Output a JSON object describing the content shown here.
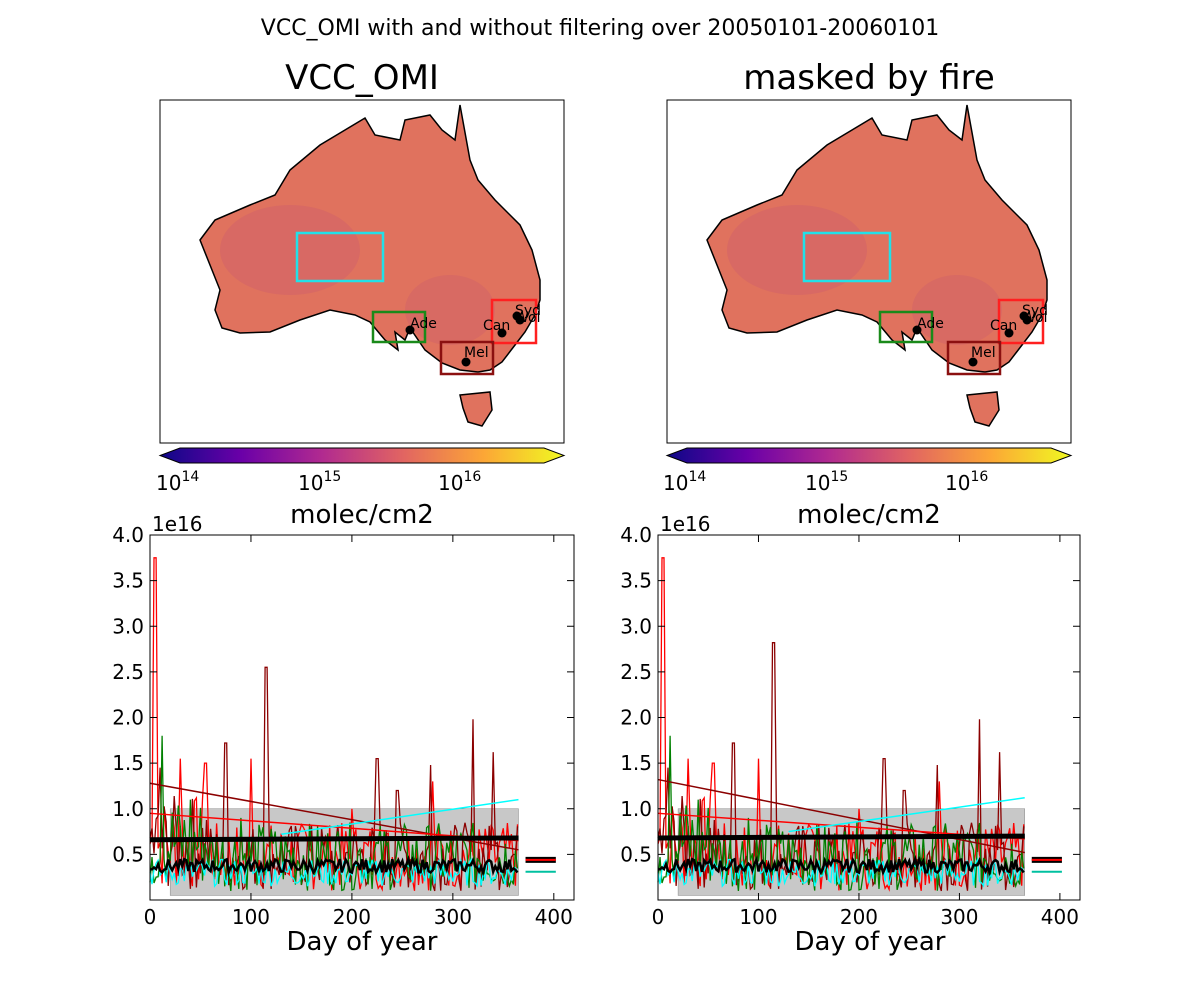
{
  "figure": {
    "suptitle": "VCC_OMI with and without filtering over 20050101-20060101",
    "colors": {
      "land": "#e0725e",
      "colormap": [
        "#0d0887",
        "#6a00a8",
        "#b12a90",
        "#e16462",
        "#fca636",
        "#f0f921"
      ],
      "boxes": {
        "cyan": "#22e0e8",
        "green": "#1a8a1a",
        "red": "#ff2020",
        "darkred": "#8b1010"
      }
    }
  },
  "panels": [
    {
      "map_title": "VCC_OMI",
      "colorbar_label": "molec/cm2",
      "colorbar_ticks": [
        "14",
        "15",
        "16"
      ],
      "cities": [
        "Syd",
        "Wol",
        "Can",
        "Ade",
        "Mel"
      ]
    },
    {
      "map_title": "masked by fire",
      "colorbar_label": "molec/cm2",
      "colorbar_ticks": [
        "14",
        "15",
        "16"
      ],
      "cities": [
        "Syd",
        "Wol",
        "Can",
        "Ade",
        "Mel"
      ]
    }
  ],
  "chart_data": [
    {
      "type": "line",
      "xlabel": "Day of year",
      "ylabel": "",
      "y_offset_label": "1e16",
      "xlim": [
        0,
        420
      ],
      "ylim": [
        0,
        4.0
      ],
      "xticks": [
        "0",
        "100",
        "200",
        "300",
        "400"
      ],
      "yticks": [
        "0.5",
        "1.0",
        "1.5",
        "2.0",
        "2.5",
        "3.0",
        "3.5",
        "4.0"
      ],
      "series": [
        {
          "color": "#ff0000",
          "spikes": [
            [
              5,
              3.75
            ],
            [
              30,
              1.55
            ],
            [
              55,
              1.5
            ],
            [
              100,
              1.55
            ],
            [
              200,
              1.0
            ],
            [
              280,
              1.3
            ]
          ]
        },
        {
          "color": "#8b0000",
          "spikes": [
            [
              10,
              1.45
            ],
            [
              75,
              1.72
            ],
            [
              115,
              2.55
            ],
            [
              225,
              1.55
            ],
            [
              245,
              1.2
            ],
            [
              278,
              1.48
            ],
            [
              320,
              1.98
            ],
            [
              340,
              1.62
            ]
          ]
        },
        {
          "color": "#008000",
          "spikes": [
            [
              12,
              1.8
            ],
            [
              40,
              1.1
            ],
            [
              90,
              0.9
            ]
          ]
        },
        {
          "color": "#00ffff",
          "spikes": []
        },
        {
          "color": "#000000",
          "spikes": []
        }
      ],
      "trend_lines": [
        {
          "color": "#8b0000",
          "x": [
            0,
            365
          ],
          "y": [
            1.28,
            0.55
          ]
        },
        {
          "color": "#ff0000",
          "x": [
            0,
            365
          ],
          "y": [
            0.95,
            0.65
          ]
        },
        {
          "color": "#00ffff",
          "x": [
            130,
            365
          ],
          "y": [
            0.72,
            1.1
          ]
        },
        {
          "color": "#000000",
          "x": [
            0,
            365
          ],
          "y": [
            0.66,
            0.68
          ]
        }
      ],
      "shade": {
        "x": [
          20,
          365
        ],
        "y": [
          0.05,
          1.0
        ]
      },
      "means": [
        {
          "color": "#000000",
          "y": 0.44
        },
        {
          "color": "#ff0000",
          "y": 0.44
        },
        {
          "color": "#00c0a0",
          "y": 0.31
        }
      ]
    },
    {
      "type": "line",
      "xlabel": "Day of year",
      "ylabel": "",
      "y_offset_label": "1e16",
      "xlim": [
        0,
        420
      ],
      "ylim": [
        0,
        4.0
      ],
      "xticks": [
        "0",
        "100",
        "200",
        "300",
        "400"
      ],
      "yticks": [
        "0.5",
        "1.0",
        "1.5",
        "2.0",
        "2.5",
        "3.0",
        "3.5",
        "4.0"
      ],
      "series": [
        {
          "color": "#ff0000",
          "spikes": [
            [
              5,
              3.75
            ],
            [
              30,
              1.55
            ],
            [
              55,
              1.5
            ],
            [
              100,
              1.55
            ],
            [
              200,
              1.0
            ],
            [
              280,
              1.3
            ]
          ]
        },
        {
          "color": "#8b0000",
          "spikes": [
            [
              10,
              1.45
            ],
            [
              75,
              1.72
            ],
            [
              115,
              2.82
            ],
            [
              225,
              1.55
            ],
            [
              245,
              1.2
            ],
            [
              278,
              1.48
            ],
            [
              320,
              1.98
            ],
            [
              340,
              1.62
            ]
          ]
        },
        {
          "color": "#008000",
          "spikes": [
            [
              12,
              1.8
            ],
            [
              40,
              1.1
            ],
            [
              90,
              0.9
            ]
          ]
        },
        {
          "color": "#00ffff",
          "spikes": []
        },
        {
          "color": "#000000",
          "spikes": []
        }
      ],
      "trend_lines": [
        {
          "color": "#8b0000",
          "x": [
            0,
            365
          ],
          "y": [
            1.32,
            0.52
          ]
        },
        {
          "color": "#ff0000",
          "x": [
            0,
            365
          ],
          "y": [
            0.95,
            0.67
          ]
        },
        {
          "color": "#00ffff",
          "x": [
            130,
            365
          ],
          "y": [
            0.75,
            1.12
          ]
        },
        {
          "color": "#000000",
          "x": [
            0,
            365
          ],
          "y": [
            0.68,
            0.7
          ]
        }
      ],
      "shade": {
        "x": [
          20,
          365
        ],
        "y": [
          0.05,
          1.0
        ]
      },
      "means": [
        {
          "color": "#000000",
          "y": 0.44
        },
        {
          "color": "#ff0000",
          "y": 0.44
        },
        {
          "color": "#00c0a0",
          "y": 0.31
        }
      ]
    }
  ]
}
